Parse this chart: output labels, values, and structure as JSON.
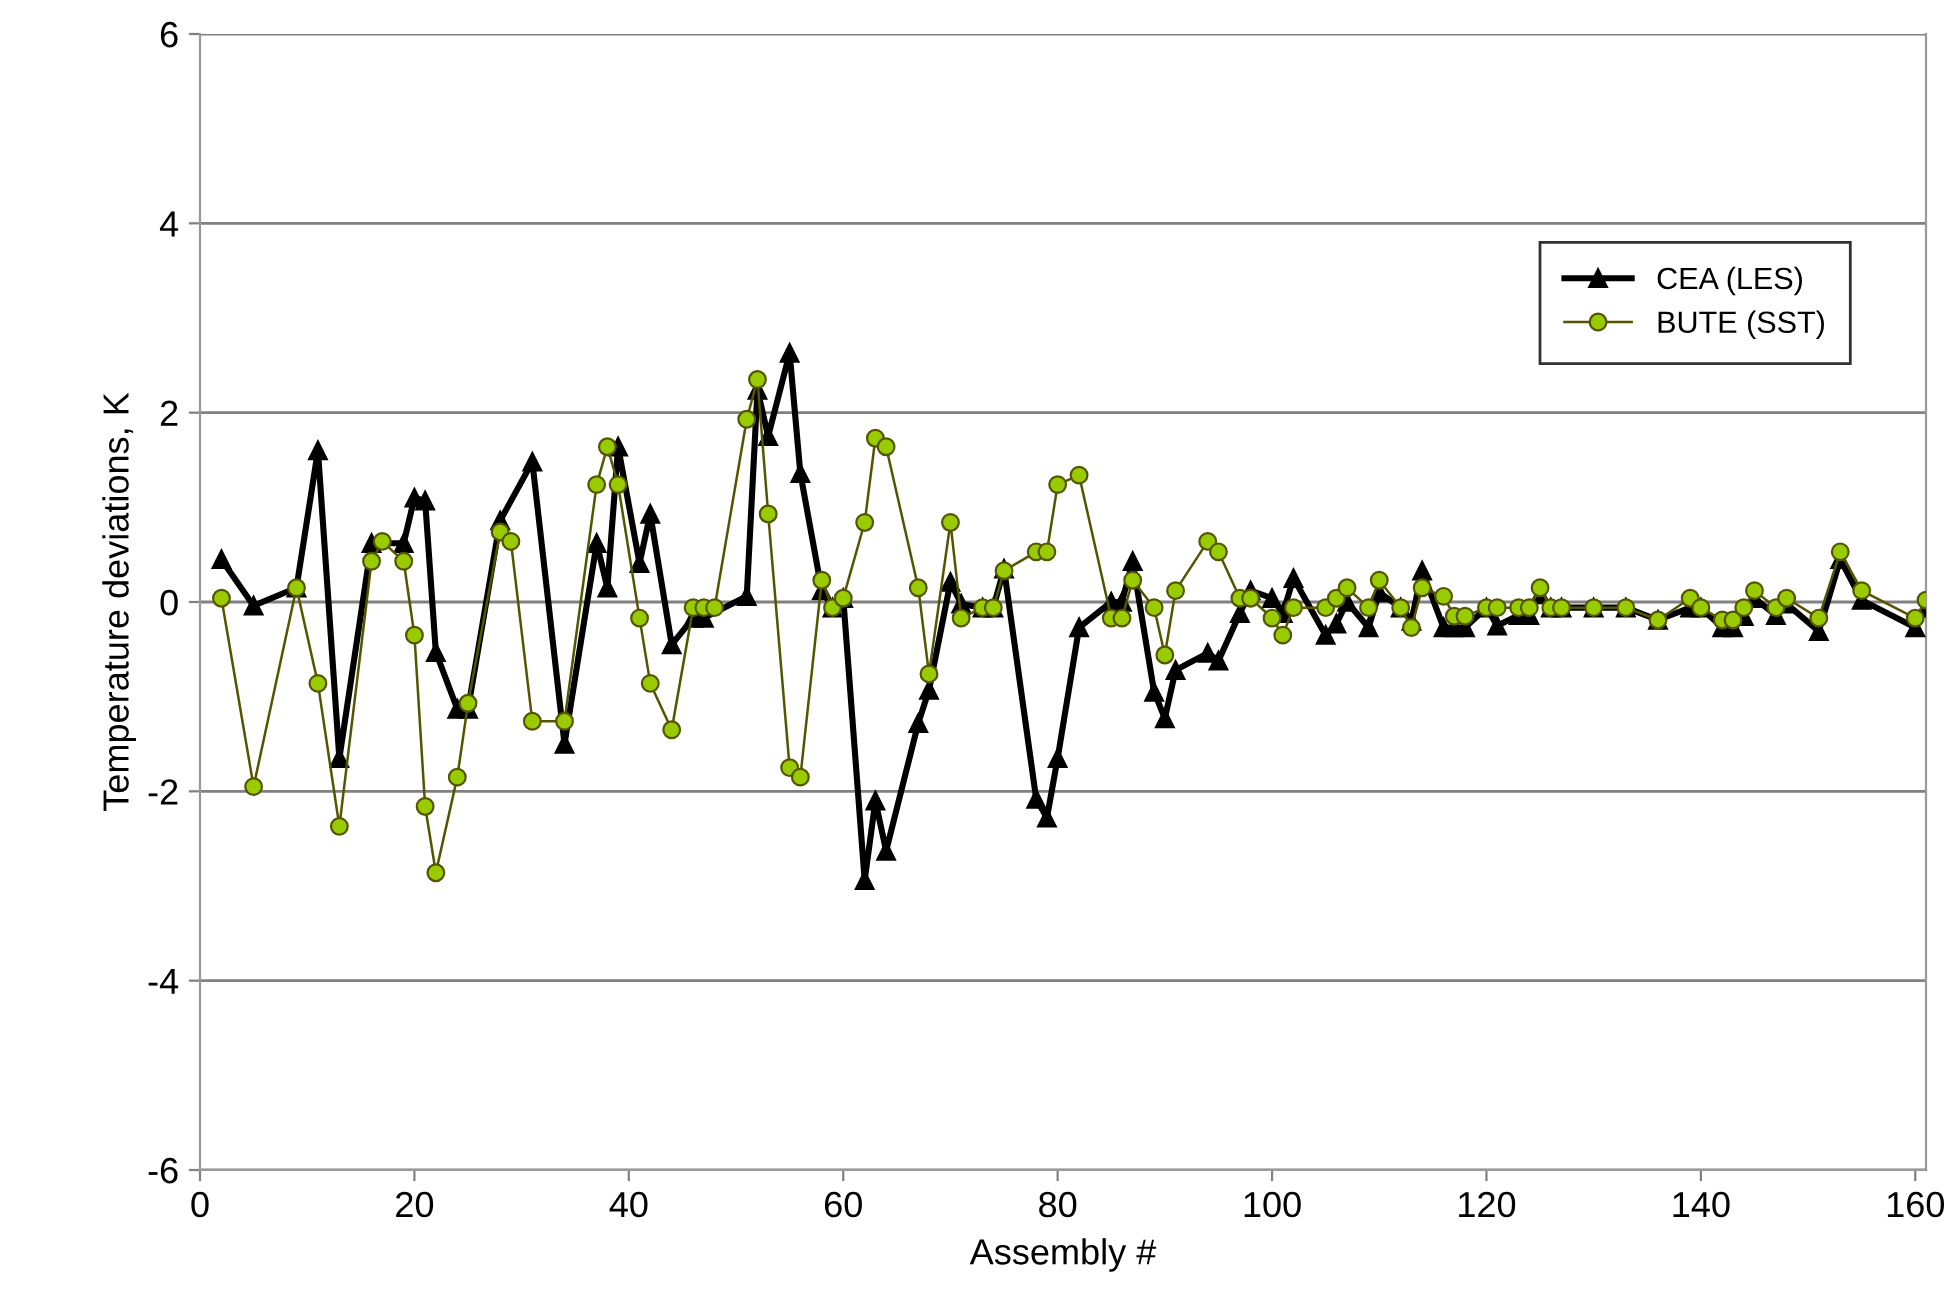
{
  "chart_data": {
    "type": "line",
    "xlabel": "Assembly #",
    "ylabel": "Temperature deviations, K",
    "xlim": [
      0,
      161
    ],
    "xticks": [
      0,
      20,
      40,
      60,
      80,
      100,
      120,
      140,
      160
    ],
    "ylim": [
      -6,
      6
    ],
    "yticks": [
      -6,
      -4,
      -2,
      0,
      2,
      4,
      6
    ],
    "grid": "y",
    "legend": "top right",
    "line_style": "solid",
    "series": [
      {
        "name": "CEA (LES)",
        "color": "#000000",
        "marker": "triangle",
        "x": [
          2,
          5,
          9,
          11,
          13,
          16,
          19,
          20,
          21,
          22,
          24,
          25,
          28,
          31,
          34,
          37,
          38,
          39,
          41,
          42,
          44,
          46,
          47,
          51,
          52,
          53,
          55,
          56,
          58,
          59,
          60,
          62,
          63,
          64,
          67,
          68,
          70,
          71,
          73,
          74,
          75,
          78,
          79,
          80,
          82,
          85,
          86,
          87,
          89,
          90,
          91,
          94,
          95,
          97,
          98,
          100,
          101,
          102,
          105,
          106,
          107,
          109,
          110,
          112,
          113,
          114,
          116,
          117,
          118,
          120,
          121,
          123,
          124,
          125,
          126,
          127,
          130,
          133,
          136,
          139,
          140,
          142,
          143,
          144,
          145,
          147,
          148,
          151,
          153,
          155,
          160,
          161
        ],
        "values": [
          0.45,
          -0.04,
          0.15,
          1.6,
          -1.65,
          0.62,
          0.62,
          1.1,
          1.07,
          -0.53,
          -1.13,
          -1.13,
          0.86,
          1.48,
          -1.5,
          0.62,
          0.15,
          1.64,
          0.41,
          0.93,
          -0.45,
          -0.17,
          -0.17,
          0.06,
          2.24,
          1.75,
          2.63,
          1.36,
          0.12,
          -0.06,
          0.04,
          -2.94,
          -2.1,
          -2.63,
          -1.28,
          -0.93,
          0.21,
          -0.02,
          -0.06,
          -0.06,
          0.35,
          -2.08,
          -2.28,
          -1.65,
          -0.27,
          0,
          0,
          0.43,
          -0.95,
          -1.23,
          -0.72,
          -0.54,
          -0.62,
          -0.12,
          0.12,
          0.04,
          -0.12,
          0.25,
          -0.35,
          -0.23,
          0,
          -0.27,
          0.1,
          -0.06,
          -0.2,
          0.33,
          -0.27,
          -0.27,
          -0.27,
          -0.06,
          -0.25,
          -0.14,
          -0.14,
          0.08,
          -0.06,
          -0.06,
          -0.06,
          -0.06,
          -0.19,
          -0.06,
          -0.06,
          -0.27,
          -0.27,
          -0.15,
          0.04,
          -0.14,
          -0.02,
          -0.31,
          0.45,
          0.02,
          -0.27,
          -0.06
        ]
      },
      {
        "name": "BUTE (SST)",
        "color": "#99cc00",
        "marker": "circle",
        "x": [
          2,
          5,
          9,
          11,
          13,
          16,
          17,
          19,
          20,
          21,
          22,
          24,
          25,
          28,
          29,
          31,
          34,
          37,
          38,
          39,
          41,
          42,
          44,
          46,
          47,
          48,
          51,
          52,
          53,
          55,
          56,
          58,
          59,
          60,
          62,
          63,
          64,
          67,
          68,
          70,
          71,
          73,
          74,
          75,
          78,
          79,
          80,
          82,
          85,
          86,
          87,
          89,
          90,
          91,
          94,
          95,
          97,
          98,
          100,
          101,
          102,
          105,
          106,
          107,
          109,
          110,
          112,
          113,
          114,
          116,
          117,
          118,
          120,
          121,
          123,
          124,
          125,
          126,
          127,
          130,
          133,
          136,
          139,
          140,
          142,
          143,
          144,
          145,
          147,
          148,
          151,
          153,
          155,
          160,
          161
        ],
        "values": [
          0.04,
          -1.95,
          0.15,
          -0.86,
          -2.37,
          0.43,
          0.64,
          0.43,
          -0.35,
          -2.16,
          -2.86,
          -1.85,
          -1.07,
          0.74,
          0.64,
          -1.26,
          -1.26,
          1.24,
          1.64,
          1.24,
          -0.17,
          -0.86,
          -1.35,
          -0.06,
          -0.06,
          -0.06,
          1.93,
          2.35,
          0.93,
          -1.75,
          -1.85,
          0.23,
          -0.06,
          0.04,
          0.84,
          1.73,
          1.64,
          0.15,
          -0.76,
          0.84,
          -0.17,
          -0.06,
          -0.06,
          0.33,
          0.53,
          0.53,
          1.24,
          1.34,
          -0.17,
          -0.17,
          0.23,
          -0.06,
          -0.56,
          0.12,
          0.64,
          0.53,
          0.04,
          0.04,
          -0.17,
          -0.35,
          -0.06,
          -0.06,
          0.04,
          0.15,
          -0.06,
          0.23,
          -0.06,
          -0.27,
          0.15,
          0.06,
          -0.15,
          -0.15,
          -0.06,
          -0.06,
          -0.06,
          -0.06,
          0.15,
          -0.06,
          -0.06,
          -0.06,
          -0.06,
          -0.19,
          0.04,
          -0.06,
          -0.19,
          -0.19,
          -0.06,
          0.12,
          -0.06,
          0.04,
          -0.17,
          0.53,
          0.12,
          -0.17,
          0.02
        ]
      }
    ]
  }
}
